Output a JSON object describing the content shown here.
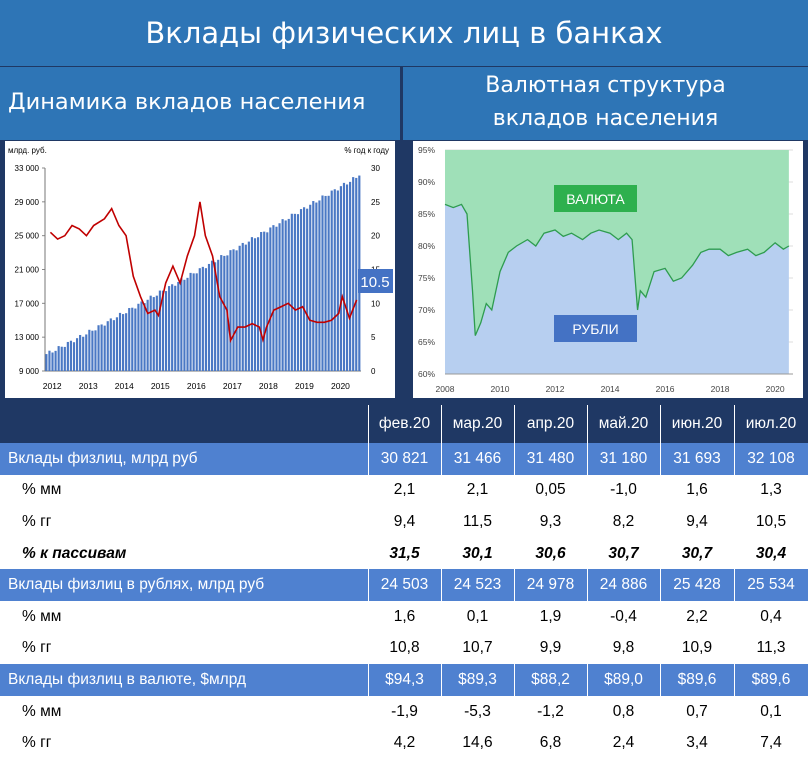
{
  "header": {
    "title": "Вклады физических лиц в банках"
  },
  "left_title": "Динамика вкладов населения",
  "right_title_1": "Валютная структура",
  "right_title_2": "вкладов населения",
  "colors": {
    "banner": "#2e75b6",
    "bar": "#4a78c4",
    "line": "#c00000",
    "valuta": "#9fe0b8",
    "rubli": "#b7cff0",
    "main_row": "#4f81d0"
  },
  "chart_data": [
    {
      "type": "bar",
      "title": "",
      "left_axis_label": "млрд. руб.",
      "right_axis_label": "% год к году",
      "ylim_left": [
        9000,
        33000
      ],
      "ylim_right": [
        0,
        30
      ],
      "yticks_left": [
        "33 000",
        "29 000",
        "25 000",
        "21 000",
        "17 000",
        "13 000",
        "9 000"
      ],
      "yticks_right": [
        "30",
        "25",
        "20",
        "15",
        "10",
        "5",
        "0"
      ],
      "xticks": [
        "2012",
        "2013",
        "2014",
        "2015",
        "2016",
        "2017",
        "2018",
        "2019",
        "2020"
      ],
      "bars_series": {
        "name": "",
        "start": [
          2012,
          1
        ],
        "end_value": 32108,
        "start_value": 11000
      },
      "line_series": {
        "name": "",
        "points": [
          [
            2012.0,
            20.5
          ],
          [
            2012.2,
            19.5
          ],
          [
            2012.4,
            20
          ],
          [
            2012.6,
            21.5
          ],
          [
            2012.8,
            21
          ],
          [
            2013.0,
            20
          ],
          [
            2013.2,
            21.5
          ],
          [
            2013.5,
            22.5
          ],
          [
            2013.7,
            24
          ],
          [
            2013.9,
            21.5
          ],
          [
            2014.1,
            20
          ],
          [
            2014.3,
            14
          ],
          [
            2014.5,
            11
          ],
          [
            2014.7,
            8.5
          ],
          [
            2014.9,
            9
          ],
          [
            2015.0,
            8.2
          ],
          [
            2015.2,
            13
          ],
          [
            2015.4,
            15.5
          ],
          [
            2015.6,
            13
          ],
          [
            2015.8,
            17
          ],
          [
            2016.0,
            20
          ],
          [
            2016.15,
            25
          ],
          [
            2016.3,
            20
          ],
          [
            2016.5,
            17
          ],
          [
            2016.7,
            11
          ],
          [
            2016.9,
            9
          ],
          [
            2017.0,
            4.5
          ],
          [
            2017.2,
            6.5
          ],
          [
            2017.4,
            6.5
          ],
          [
            2017.6,
            7
          ],
          [
            2017.8,
            6.5
          ],
          [
            2017.9,
            4.6
          ],
          [
            2018.0,
            6.5
          ],
          [
            2018.2,
            9
          ],
          [
            2018.4,
            9.5
          ],
          [
            2018.6,
            10
          ],
          [
            2018.8,
            9
          ],
          [
            2019.0,
            9.5
          ],
          [
            2019.2,
            7.5
          ],
          [
            2019.4,
            7.2
          ],
          [
            2019.6,
            7.2
          ],
          [
            2019.8,
            7.5
          ],
          [
            2020.0,
            8.5
          ],
          [
            2020.1,
            11
          ],
          [
            2020.3,
            7.8
          ],
          [
            2020.5,
            10.5
          ]
        ]
      },
      "callout": "10.5"
    },
    {
      "type": "area",
      "title": "",
      "ylim": [
        60,
        95
      ],
      "yticks": [
        "95%",
        "90%",
        "85%",
        "80%",
        "75%",
        "70%",
        "65%",
        "60%"
      ],
      "xticks": [
        "2008",
        "2010",
        "2012",
        "2014",
        "2016",
        "2018",
        "2020"
      ],
      "labels": {
        "valuta": "ВАЛЮТА",
        "rubli": "РУБЛИ"
      },
      "series": [
        {
          "name": "РУБЛИ",
          "x": [
            2008.0,
            2008.3,
            2008.6,
            2008.8,
            2009.0,
            2009.1,
            2009.3,
            2009.5,
            2009.7,
            2010.0,
            2010.3,
            2010.6,
            2011.0,
            2011.3,
            2011.6,
            2012.0,
            2012.3,
            2012.6,
            2013.0,
            2013.3,
            2013.6,
            2014.0,
            2014.3,
            2014.6,
            2014.8,
            2015.0,
            2015.1,
            2015.3,
            2015.6,
            2016.0,
            2016.3,
            2016.6,
            2017.0,
            2017.3,
            2017.6,
            2018.0,
            2018.3,
            2018.6,
            2019.0,
            2019.3,
            2019.6,
            2020.0,
            2020.3,
            2020.5
          ],
          "y": [
            86.5,
            86,
            86.5,
            85,
            73,
            66,
            68,
            71,
            70,
            76,
            79,
            80,
            81,
            80,
            82,
            82.5,
            81.5,
            82,
            81,
            82,
            82.5,
            82,
            81,
            82,
            81,
            70,
            73,
            72,
            76,
            76.5,
            74.5,
            75,
            77,
            79,
            79.5,
            79.5,
            78.5,
            79,
            79.5,
            78.5,
            79,
            80.5,
            79.5,
            80
          ]
        }
      ]
    }
  ],
  "table": {
    "columns": [
      "фев.20",
      "мар.20",
      "апр.20",
      "май.20",
      "июн.20",
      "июл.20"
    ],
    "rows": [
      {
        "label": "Вклады физлиц, млрд руб",
        "type": "main",
        "values": [
          "30 821",
          "31 466",
          "31 480",
          "31 180",
          "31 693",
          "32 108"
        ]
      },
      {
        "label": "% мм",
        "type": "row",
        "values": [
          "2,1",
          "2,1",
          "0,05",
          "-1,0",
          "1,6",
          "1,3"
        ]
      },
      {
        "label": "% гг",
        "type": "row",
        "values": [
          "9,4",
          "11,5",
          "9,3",
          "8,2",
          "9,4",
          "10,5"
        ]
      },
      {
        "label": "% к пассивам",
        "type": "row ital",
        "values": [
          "31,5",
          "30,1",
          "30,6",
          "30,7",
          "30,7",
          "30,4"
        ]
      },
      {
        "label": "Вклады физлиц в рублях, млрд руб",
        "type": "main",
        "values": [
          "24 503",
          "24 523",
          "24 978",
          "24 886",
          "25 428",
          "25 534"
        ]
      },
      {
        "label": "% мм",
        "type": "row",
        "values": [
          "1,6",
          "0,1",
          "1,9",
          "-0,4",
          "2,2",
          "0,4"
        ]
      },
      {
        "label": "% гг",
        "type": "row",
        "values": [
          "10,8",
          "10,7",
          "9,9",
          "9,8",
          "10,9",
          "11,3"
        ]
      },
      {
        "label": "Вклады физлиц в валюте, $млрд",
        "type": "main",
        "values": [
          "$94,3",
          "$89,3",
          "$88,2",
          "$89,0",
          "$89,6",
          "$89,6"
        ]
      },
      {
        "label": "% мм",
        "type": "row",
        "values": [
          "-1,9",
          "-5,3",
          "-1,2",
          "0,8",
          "0,7",
          "0,1"
        ]
      },
      {
        "label": "% гг",
        "type": "row",
        "values": [
          "4,2",
          "14,6",
          "6,8",
          "2,4",
          "3,4",
          "7,4"
        ]
      }
    ]
  }
}
